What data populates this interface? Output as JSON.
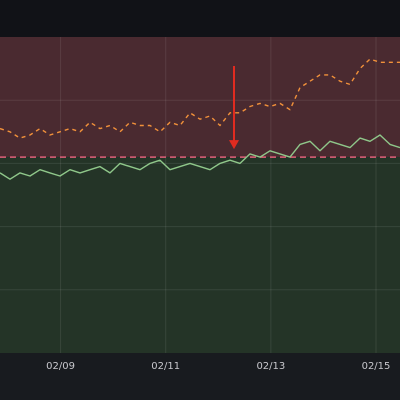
{
  "chart_data": {
    "type": "line",
    "x_ticks": [
      "02/09",
      "02/11",
      "02/13",
      "02/15"
    ],
    "xlim": [
      "02/08",
      "02/15"
    ],
    "ylim": [
      0,
      100
    ],
    "threshold": 62,
    "regions": [
      {
        "from": 62,
        "to": 100,
        "color": "#4a2a30"
      },
      {
        "from": 0,
        "to": 62,
        "color": "#243427"
      }
    ],
    "threshold_color": "#e0607a",
    "grid": true,
    "annotation": {
      "x": 0.585,
      "y": 62,
      "color": "#e02b20"
    },
    "series": [
      {
        "color": "#f2913a",
        "style": "dashed",
        "x": [
          0,
          0.025,
          0.05,
          0.075,
          0.1,
          0.125,
          0.15,
          0.175,
          0.2,
          0.225,
          0.25,
          0.275,
          0.3,
          0.325,
          0.35,
          0.375,
          0.4,
          0.425,
          0.45,
          0.475,
          0.5,
          0.525,
          0.55,
          0.575,
          0.6,
          0.625,
          0.65,
          0.675,
          0.7,
          0.725,
          0.75,
          0.775,
          0.8,
          0.825,
          0.85,
          0.875,
          0.9,
          0.925,
          0.95,
          0.975,
          1
        ],
        "values": [
          71,
          70,
          68,
          69,
          71,
          69,
          70,
          71,
          70,
          73,
          71,
          72,
          70,
          73,
          72,
          72,
          70,
          73,
          72,
          76,
          74,
          75,
          72,
          76,
          76,
          78,
          79,
          78,
          79,
          77,
          84,
          86,
          88,
          88,
          86,
          85,
          90,
          93,
          92,
          92,
          92
        ]
      },
      {
        "color": "#8fc78a",
        "style": "solid",
        "x": [
          0,
          0.025,
          0.05,
          0.075,
          0.1,
          0.125,
          0.15,
          0.175,
          0.2,
          0.225,
          0.25,
          0.275,
          0.3,
          0.325,
          0.35,
          0.375,
          0.4,
          0.425,
          0.45,
          0.475,
          0.5,
          0.525,
          0.55,
          0.575,
          0.6,
          0.625,
          0.65,
          0.675,
          0.7,
          0.725,
          0.75,
          0.775,
          0.8,
          0.825,
          0.85,
          0.875,
          0.9,
          0.925,
          0.95,
          0.975,
          1
        ],
        "values": [
          57,
          55,
          57,
          56,
          58,
          57,
          56,
          58,
          57,
          58,
          59,
          57,
          60,
          59,
          58,
          60,
          61,
          58,
          59,
          60,
          59,
          58,
          60,
          61,
          60,
          63,
          62,
          64,
          63,
          62,
          66,
          67,
          64,
          67,
          66,
          65,
          68,
          67,
          69,
          66,
          65
        ]
      }
    ]
  }
}
